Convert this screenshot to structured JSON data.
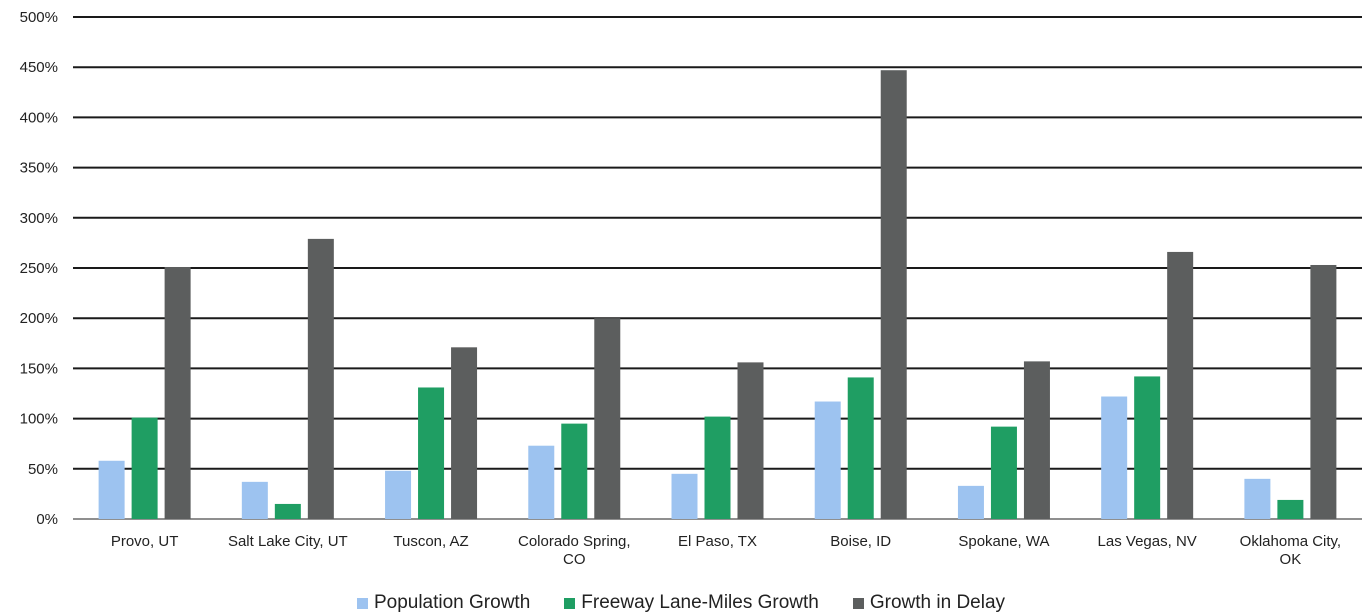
{
  "chart_data": {
    "type": "bar",
    "categories": [
      [
        "Provo, UT"
      ],
      [
        "Salt Lake City, UT"
      ],
      [
        "Tuscon, AZ"
      ],
      [
        "Colorado Spring,",
        "CO"
      ],
      [
        "El Paso, TX"
      ],
      [
        "Boise, ID"
      ],
      [
        "Spokane, WA"
      ],
      [
        "Las Vegas, NV"
      ],
      [
        "Oklahoma City,",
        "OK"
      ]
    ],
    "series": [
      {
        "name": "Population Growth",
        "color": "#9DC3F0",
        "values": [
          58,
          37,
          48,
          73,
          45,
          117,
          33,
          122,
          40
        ]
      },
      {
        "name": "Freeway Lane-Miles Growth",
        "color": "#1F9E63",
        "values": [
          101,
          15,
          131,
          95,
          102,
          141,
          92,
          142,
          19
        ]
      },
      {
        "name": "Growth in Delay",
        "color": "#5C5E5E",
        "values": [
          251,
          279,
          171,
          200,
          156,
          447,
          157,
          266,
          253
        ]
      }
    ],
    "yticks": [
      "0%",
      "50%",
      "100%",
      "150%",
      "200%",
      "250%",
      "300%",
      "350%",
      "400%",
      "450%",
      "500%"
    ],
    "ylim": [
      0,
      500
    ],
    "grid": true,
    "legend_position": "bottom",
    "title": "",
    "xlabel": "",
    "ylabel": ""
  }
}
